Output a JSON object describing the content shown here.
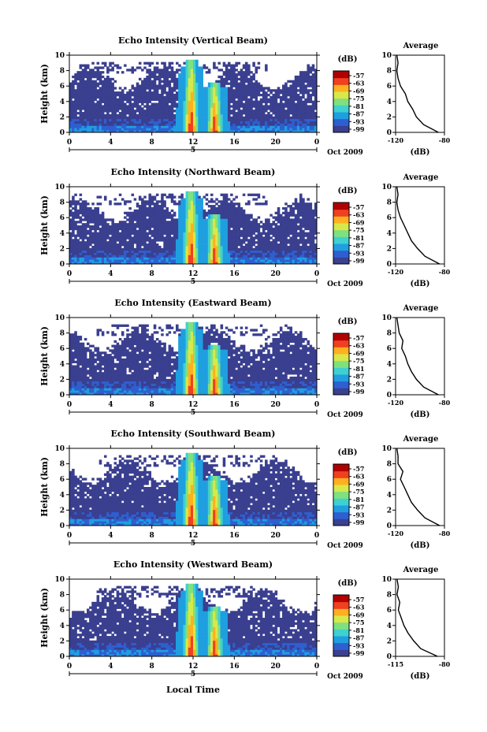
{
  "figure": {
    "xlabel_bottom": "Local Time",
    "date_label": "Oct 2009",
    "colorbar_unit": "(dB)",
    "colorbar_ticks": [
      "-57",
      "-63",
      "-69",
      "-75",
      "-81",
      "-87",
      "-93",
      "-99"
    ],
    "colormap": [
      "#3a3f8f",
      "#2e5fd0",
      "#1f9fe0",
      "#3fd0d0",
      "#7fe07f",
      "#d8e84a",
      "#ffb020",
      "#f04020",
      "#b00000"
    ]
  },
  "chart_data": [
    {
      "type": "heatmap",
      "title": "Echo Intensity (Vertical Beam)",
      "ylabel": "Height (km)",
      "x_ticks": [
        "0",
        "4",
        "8",
        "12",
        "16",
        "20",
        "0"
      ],
      "x_day_label": "5",
      "xlim": [
        0,
        24
      ],
      "ylim": [
        0,
        10
      ],
      "y_ticks": [
        "0",
        "2",
        "4",
        "6",
        "8",
        "10"
      ],
      "clim": [
        -99,
        -57
      ],
      "rain_cores_local_time": [
        12,
        14
      ],
      "profile": {
        "title": "Average",
        "xlabel": "(dB)",
        "x_ticks": [
          "-120",
          "-80"
        ],
        "xlim": [
          -120,
          -80
        ],
        "height_km": [
          0,
          1,
          2,
          3,
          4,
          5,
          6,
          7,
          8,
          9,
          10
        ],
        "avg_db": [
          -85,
          -97,
          -103,
          -106,
          -110,
          -112,
          -116,
          -118,
          -119,
          -118,
          -119
        ]
      }
    },
    {
      "type": "heatmap",
      "title": "Echo Intensity (Northward Beam)",
      "ylabel": "Height (km)",
      "x_ticks": [
        "0",
        "4",
        "8",
        "12",
        "16",
        "20",
        "0"
      ],
      "x_day_label": "5",
      "xlim": [
        0,
        24
      ],
      "ylim": [
        0,
        10
      ],
      "y_ticks": [
        "0",
        "2",
        "4",
        "6",
        "8",
        "10"
      ],
      "clim": [
        -99,
        -57
      ],
      "rain_cores_local_time": [
        12,
        14
      ],
      "profile": {
        "title": "Average",
        "xlabel": "(dB)",
        "x_ticks": [
          "-120",
          "-80"
        ],
        "xlim": [
          -120,
          -80
        ],
        "height_km": [
          0,
          1,
          2,
          3,
          4,
          5,
          6,
          7,
          8,
          9,
          10
        ],
        "avg_db": [
          -84,
          -96,
          -102,
          -107,
          -110,
          -113,
          -116,
          -118,
          -119,
          -118,
          -119
        ]
      }
    },
    {
      "type": "heatmap",
      "title": "Echo Intensity (Eastward Beam)",
      "ylabel": "Height (km)",
      "x_ticks": [
        "0",
        "4",
        "8",
        "12",
        "16",
        "20",
        "0"
      ],
      "x_day_label": "5",
      "xlim": [
        0,
        24
      ],
      "ylim": [
        0,
        10
      ],
      "y_ticks": [
        "0",
        "2",
        "4",
        "6",
        "8",
        "10"
      ],
      "clim": [
        -99,
        -57
      ],
      "rain_cores_local_time": [
        12,
        14
      ],
      "profile": {
        "title": "Average",
        "xlabel": "(dB)",
        "x_ticks": [
          "-120",
          "-80"
        ],
        "xlim": [
          -120,
          -80
        ],
        "height_km": [
          0,
          1,
          2,
          3,
          4,
          5,
          6,
          7,
          8,
          9,
          10
        ],
        "avg_db": [
          -85,
          -97,
          -103,
          -107,
          -110,
          -112,
          -115,
          -114,
          -117,
          -118,
          -119
        ]
      }
    },
    {
      "type": "heatmap",
      "title": "Echo Intensity (Southward Beam)",
      "ylabel": "Height (km)",
      "x_ticks": [
        "0",
        "4",
        "8",
        "12",
        "16",
        "20",
        "0"
      ],
      "x_day_label": "5",
      "xlim": [
        0,
        24
      ],
      "ylim": [
        0,
        10
      ],
      "y_ticks": [
        "0",
        "2",
        "4",
        "6",
        "8",
        "10"
      ],
      "clim": [
        -99,
        -57
      ],
      "rain_cores_local_time": [
        12,
        14
      ],
      "profile": {
        "title": "Average",
        "xlabel": "(dB)",
        "x_ticks": [
          "-120",
          "-80"
        ],
        "xlim": [
          -120,
          -80
        ],
        "height_km": [
          0,
          1,
          2,
          3,
          4,
          5,
          6,
          7,
          8,
          9,
          10
        ],
        "avg_db": [
          -84,
          -96,
          -102,
          -107,
          -110,
          -113,
          -116,
          -114,
          -118,
          -118,
          -119
        ]
      }
    },
    {
      "type": "heatmap",
      "title": "Echo Intensity (Westward Beam)",
      "ylabel": "Height (km)",
      "x_ticks": [
        "0",
        "4",
        "8",
        "12",
        "16",
        "20",
        "0"
      ],
      "x_day_label": "5",
      "xlim": [
        0,
        24
      ],
      "ylim": [
        0,
        10
      ],
      "y_ticks": [
        "0",
        "2",
        "4",
        "6",
        "8",
        "10"
      ],
      "clim": [
        -99,
        -57
      ],
      "rain_cores_local_time": [
        12,
        14
      ],
      "profile": {
        "title": "Average",
        "xlabel": "(dB)",
        "x_ticks": [
          "-115",
          "-80"
        ],
        "xlim": [
          -115,
          -80
        ],
        "height_km": [
          0,
          1,
          2,
          3,
          4,
          5,
          6,
          7,
          8,
          9,
          10
        ],
        "avg_db": [
          -85,
          -97,
          -102,
          -106,
          -109,
          -111,
          -113,
          -112,
          -114,
          -113,
          -114
        ]
      }
    }
  ]
}
